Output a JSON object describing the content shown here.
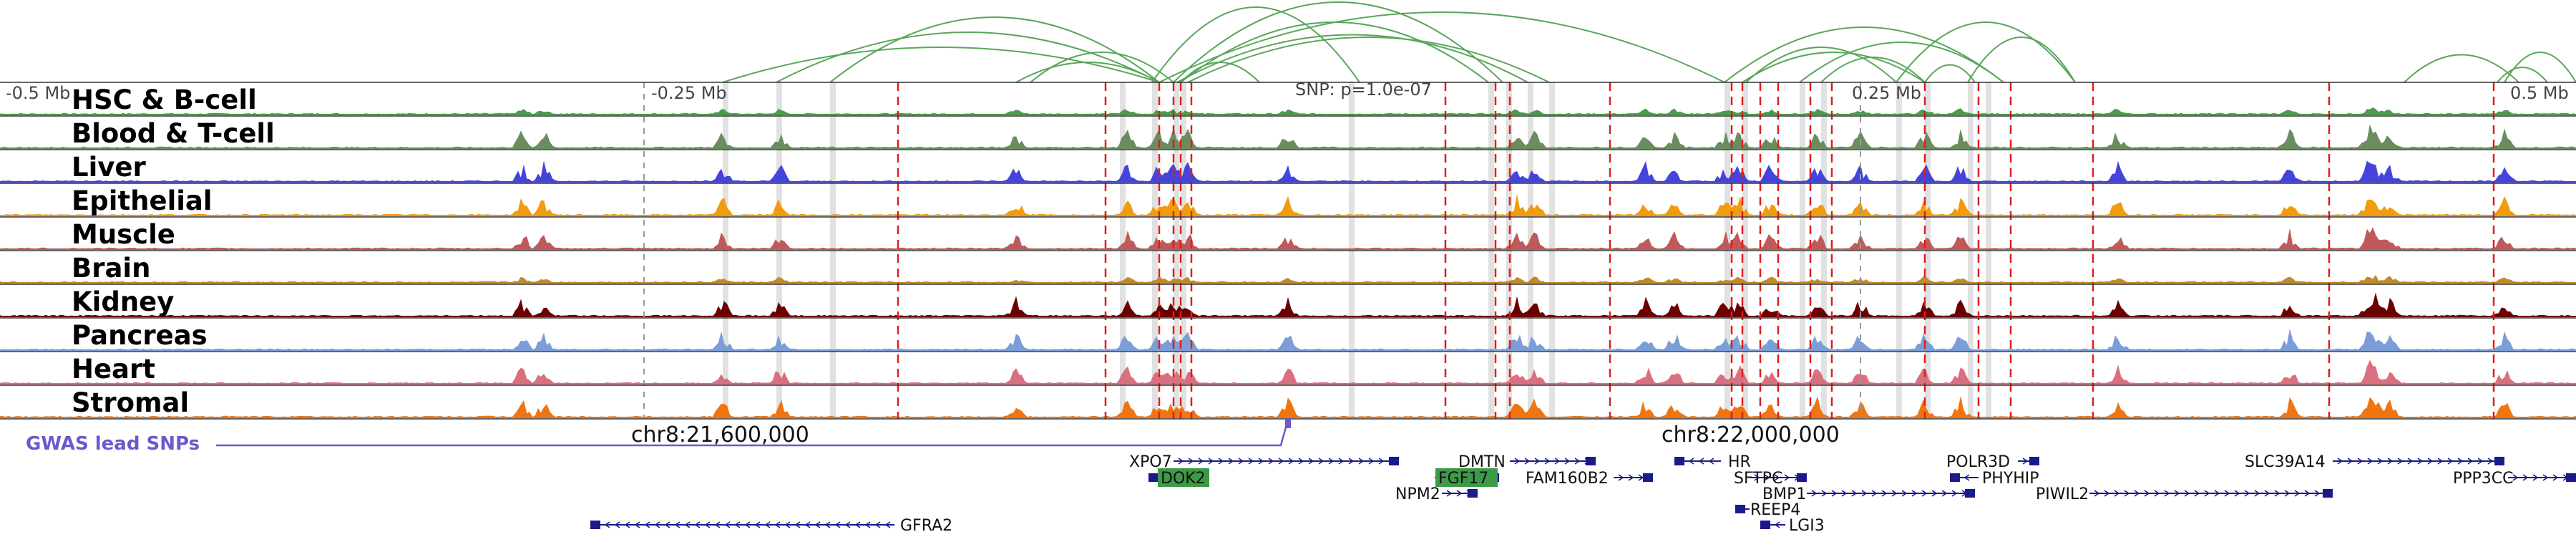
{
  "colors": {
    "arc": "#5aa65a",
    "frame": "#333333",
    "snp_line": "#e01d1d",
    "highlight": "#d9d9d9",
    "gwas": "#6a5acd",
    "gene": "#1a1a8c",
    "gene_highlight_bg": "#3d9b47"
  },
  "axis": {
    "ticks": [
      {
        "label": "-0.5 Mb"
      },
      {
        "label": "-0.25 Mb"
      },
      {
        "label": "SNP: p=1.0e-07"
      },
      {
        "label": "0.25 Mb"
      },
      {
        "label": "0.5 Mb"
      }
    ]
  },
  "tracks": [
    {
      "label": "HSC & B-cell",
      "color": "#4c9a4c"
    },
    {
      "label": "Blood & T-cell",
      "color": "#6b8c5e"
    },
    {
      "label": "Liver",
      "color": "#4444dd"
    },
    {
      "label": "Epithelial",
      "color": "#f29b0c"
    },
    {
      "label": "Muscle",
      "color": "#c05a5a"
    },
    {
      "label": "Brain",
      "color": "#c08a2a"
    },
    {
      "label": "Kidney",
      "color": "#6b0000"
    },
    {
      "label": "Pancreas",
      "color": "#7b9ed8"
    },
    {
      "label": "Heart",
      "color": "#d9707f"
    },
    {
      "label": "Stromal",
      "color": "#f07510"
    }
  ],
  "gwas": {
    "label": "GWAS lead SNPs"
  },
  "coords": {
    "left": "chr8:21,600,000",
    "right": "chr8:22,000,000"
  },
  "genes": [
    {
      "name": "XPO7",
      "strand": "+",
      "highlight": false
    },
    {
      "name": "DOK2",
      "strand": "-",
      "highlight": true
    },
    {
      "name": "DMTN",
      "strand": "+",
      "highlight": false
    },
    {
      "name": "FGF17",
      "strand": "+",
      "highlight": true
    },
    {
      "name": "NPM2",
      "strand": "+",
      "highlight": false
    },
    {
      "name": "FAM160B2",
      "strand": "+",
      "highlight": false
    },
    {
      "name": "HR",
      "strand": "-",
      "highlight": false
    },
    {
      "name": "SFTPC",
      "strand": "+",
      "highlight": false
    },
    {
      "name": "BMP1",
      "strand": "+",
      "highlight": false
    },
    {
      "name": "REEP4",
      "strand": "-",
      "highlight": false
    },
    {
      "name": "LGI3",
      "strand": "-",
      "highlight": false
    },
    {
      "name": "POLR3D",
      "strand": "+",
      "highlight": false
    },
    {
      "name": "PHYHIP",
      "strand": "-",
      "highlight": false
    },
    {
      "name": "PIWIL2",
      "strand": "+",
      "highlight": false
    },
    {
      "name": "SLC39A14",
      "strand": "+",
      "highlight": false
    },
    {
      "name": "PPP3CC",
      "strand": "+",
      "highlight": false
    },
    {
      "name": "GFRA2",
      "strand": "-",
      "highlight": false
    }
  ]
}
